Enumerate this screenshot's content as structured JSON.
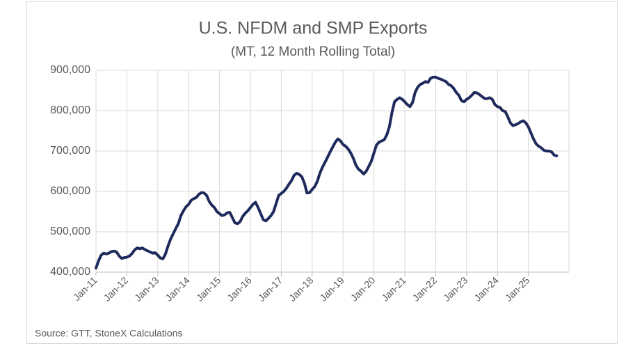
{
  "chart_data": {
    "type": "line",
    "title": "U.S. NFDM and SMP Exports",
    "subtitle": "(MT, 12 Month Rolling Total)",
    "source": "Source: GTT, StoneX Calculations",
    "categories": [
      "Jan-11",
      null,
      null,
      null,
      null,
      null,
      null,
      null,
      null,
      null,
      null,
      null,
      "Jan-12",
      null,
      null,
      null,
      null,
      null,
      null,
      null,
      null,
      null,
      null,
      null,
      "Jan-13",
      null,
      null,
      null,
      null,
      null,
      null,
      null,
      null,
      null,
      null,
      null,
      "Jan-14",
      null,
      null,
      null,
      null,
      null,
      null,
      null,
      null,
      null,
      null,
      null,
      "Jan-15",
      null,
      null,
      null,
      null,
      null,
      null,
      null,
      null,
      null,
      null,
      null,
      "Jan-16",
      null,
      null,
      null,
      null,
      null,
      null,
      null,
      null,
      null,
      null,
      null,
      "Jan-17",
      null,
      null,
      null,
      null,
      null,
      null,
      null,
      null,
      null,
      null,
      null,
      "Jan-18",
      null,
      null,
      null,
      null,
      null,
      null,
      null,
      null,
      null,
      null,
      null,
      "Jan-19",
      null,
      null,
      null,
      null,
      null,
      null,
      null,
      null,
      null,
      null,
      null,
      "Jan-20",
      null,
      null,
      null,
      null,
      null,
      null,
      null,
      null,
      null,
      null,
      null,
      "Jan-21",
      null,
      null,
      null,
      null,
      null,
      null,
      null,
      null,
      null,
      null,
      null,
      "Jan-22",
      null,
      null,
      null,
      null,
      null,
      null,
      null,
      null,
      null,
      null,
      null,
      "Jan-23",
      null,
      null,
      null,
      null,
      null,
      null,
      null,
      null,
      null,
      null,
      null,
      "Jan-24",
      null,
      null,
      null,
      null,
      null,
      null,
      null,
      null,
      null,
      null,
      null,
      "Jan-25",
      null,
      null,
      null,
      null,
      null,
      null,
      null,
      null,
      null,
      null,
      null
    ],
    "series": [
      {
        "color": "#1f2a5c",
        "values": [
          410000,
          428000,
          442000,
          447000,
          445000,
          447000,
          451000,
          452000,
          450000,
          440000,
          434000,
          436000,
          437000,
          440000,
          446000,
          455000,
          460000,
          458000,
          460000,
          456000,
          453000,
          450000,
          447000,
          448000,
          442000,
          435000,
          433000,
          445000,
          465000,
          482000,
          495000,
          508000,
          520000,
          540000,
          552000,
          562000,
          568000,
          578000,
          582000,
          585000,
          593000,
          597000,
          596000,
          590000,
          575000,
          566000,
          560000,
          550000,
          545000,
          540000,
          542000,
          547000,
          548000,
          535000,
          522000,
          520000,
          525000,
          538000,
          546000,
          552000,
          560000,
          568000,
          573000,
          560000,
          545000,
          530000,
          527000,
          533000,
          540000,
          550000,
          570000,
          590000,
          595000,
          600000,
          608000,
          618000,
          627000,
          640000,
          645000,
          642000,
          636000,
          620000,
          596000,
          597000,
          605000,
          612000,
          625000,
          645000,
          660000,
          672000,
          685000,
          698000,
          710000,
          722000,
          730000,
          725000,
          716000,
          712000,
          705000,
          695000,
          682000,
          665000,
          655000,
          650000,
          643000,
          650000,
          662000,
          675000,
          695000,
          715000,
          722000,
          725000,
          728000,
          740000,
          760000,
          795000,
          822000,
          828000,
          832000,
          828000,
          822000,
          815000,
          810000,
          820000,
          845000,
          858000,
          865000,
          868000,
          872000,
          870000,
          880000,
          883000,
          883000,
          880000,
          878000,
          875000,
          872000,
          865000,
          862000,
          855000,
          845000,
          838000,
          825000,
          822000,
          828000,
          832000,
          838000,
          845000,
          844000,
          840000,
          835000,
          830000,
          830000,
          832000,
          828000,
          815000,
          810000,
          808000,
          800000,
          798000,
          785000,
          770000,
          763000,
          765000,
          768000,
          772000,
          775000,
          770000,
          760000,
          745000,
          730000,
          718000,
          712000,
          708000,
          702000,
          700000,
          700000,
          698000,
          690000,
          688000
        ]
      }
    ],
    "ylim": [
      400000,
      900000
    ],
    "yticks": [
      {
        "value": 400000,
        "label": "400,000"
      },
      {
        "value": 500000,
        "label": "500,000"
      },
      {
        "value": 600000,
        "label": "600,000"
      },
      {
        "value": 700000,
        "label": "700,000"
      },
      {
        "value": 800000,
        "label": "800,000"
      },
      {
        "value": 900000,
        "label": "900,000"
      }
    ],
    "grid": true
  }
}
